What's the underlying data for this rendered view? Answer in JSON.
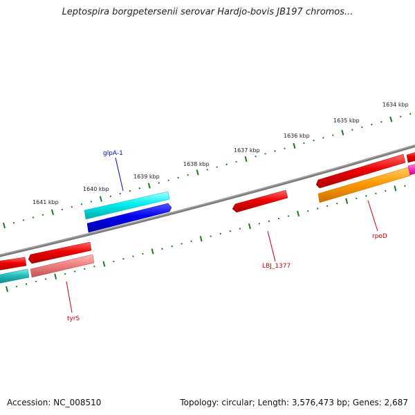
{
  "title": "Leptospira borgpetersenii serovar Hardjo-bovis JB197 chromos...",
  "footer": {
    "accession": "Accession: NC_008510",
    "stats": "Topology: circular; Length: 3,576,473 bp; Genes: 2,687"
  },
  "ruler_labels": [
    "1634 kbp",
    "1635 kbp",
    "1636 kbp",
    "1637 kbp",
    "1638 kbp",
    "1639 kbp",
    "1640 kbp",
    "1641 kbp"
  ],
  "gene_labels": [
    {
      "text": "glpA-1",
      "color": "#0000cc"
    },
    {
      "text": "LBJ_1377",
      "color": "#cc0000"
    },
    {
      "text": "rpoD",
      "color": "#cc0000"
    },
    {
      "text": "tyrS",
      "color": "#cc0000"
    }
  ],
  "colors": {
    "backbone": "#7a7a7a",
    "ticks": "#1a7a1a",
    "red": "#ee0000",
    "cyan": "#00eeee",
    "blue": "#0000ee",
    "orange": "#ff9900",
    "pink": "#f08080",
    "magenta": "#ff33cc",
    "teal": "#22bbbb"
  }
}
